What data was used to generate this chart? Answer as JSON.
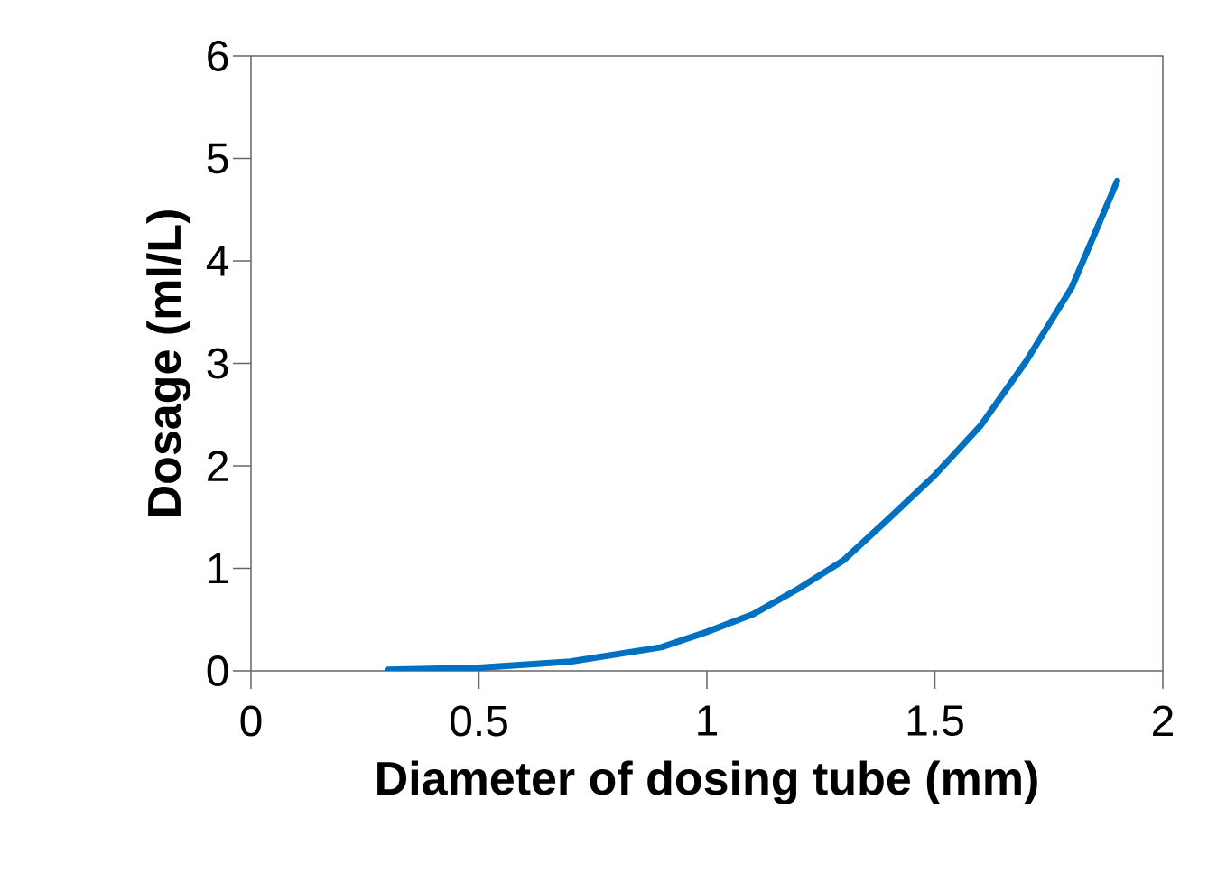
{
  "chart_data": {
    "type": "line",
    "xlabel": "Diameter of dosing tube (mm)",
    "ylabel": "Dosage (ml/L)",
    "x": [
      0.3,
      0.5,
      0.7,
      0.9,
      1.0,
      1.1,
      1.2,
      1.3,
      1.4,
      1.5,
      1.6,
      1.7,
      1.8,
      1.9
    ],
    "values": [
      0.01,
      0.03,
      0.09,
      0.23,
      0.38,
      0.55,
      0.8,
      1.08,
      1.49,
      1.91,
      2.39,
      3.02,
      3.74,
      4.78
    ],
    "color": "#0070c0",
    "xlim": [
      0,
      2
    ],
    "ylim": [
      0,
      6
    ],
    "xticks": [
      0,
      0.5,
      1,
      1.5,
      2
    ],
    "yticks": [
      0,
      1,
      2,
      3,
      4,
      5,
      6
    ]
  }
}
